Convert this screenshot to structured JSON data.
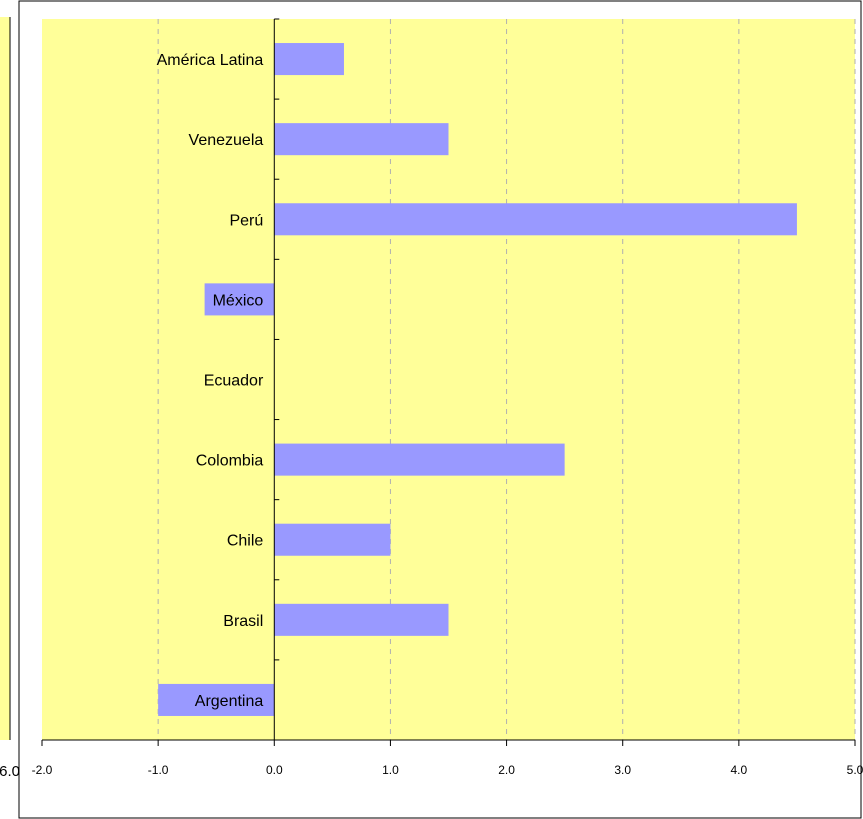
{
  "chart_data": {
    "type": "bar",
    "orientation": "horizontal",
    "categories": [
      "América Latina",
      "Venezuela",
      "Perú",
      "México",
      "Ecuador",
      "Colombia",
      "Chile",
      "Brasil",
      "Argentina"
    ],
    "values": [
      0.6,
      1.5,
      4.5,
      -0.6,
      0.0,
      2.5,
      1.0,
      1.5,
      -1.0
    ],
    "xlim": [
      -2.0,
      5.0
    ],
    "x_ticks": [
      "-2.0",
      "-1.0",
      "0.0",
      "1.0",
      "2.0",
      "3.0",
      "4.0",
      "5.0"
    ],
    "grid": "vertical-dashed",
    "colors": {
      "bar": "#9999ff",
      "plot_bg": "#ffff99",
      "grid": "#b0b0b0",
      "axis": "#000000"
    },
    "left_panel_cut_tick": "6.0"
  }
}
